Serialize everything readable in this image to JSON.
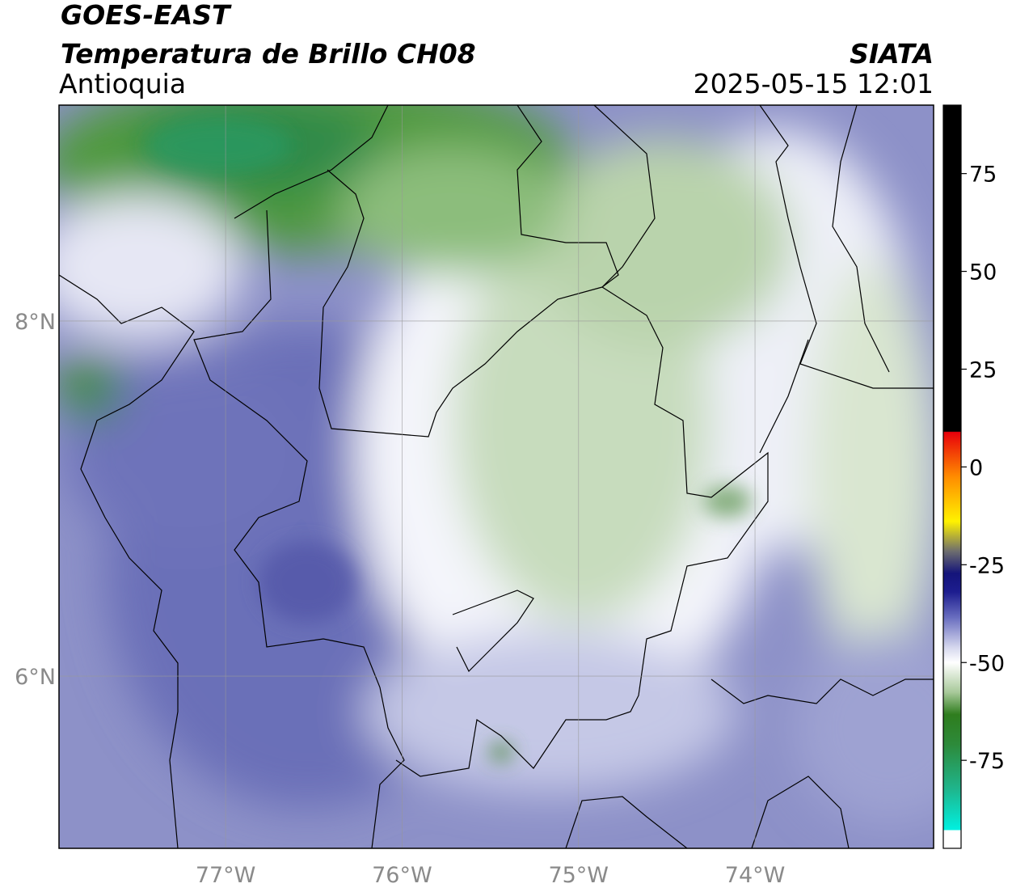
{
  "header": {
    "title": "GOES-EAST",
    "subtitle": "Temperatura de Brillo CH08",
    "region": "Antioquia",
    "source": "SIATA",
    "datetime": "2025-05-15 12:01"
  },
  "map": {
    "xlim": [
      -77.944,
      -72.988
    ],
    "ylim": [
      5.03,
      9.216
    ],
    "xticks": [
      {
        "value": -77,
        "label": "77°W"
      },
      {
        "value": -76,
        "label": "76°W"
      },
      {
        "value": -75,
        "label": "75°W"
      },
      {
        "value": -74,
        "label": "74°W"
      }
    ],
    "yticks": [
      {
        "value": 8,
        "label": "8°N"
      },
      {
        "value": 6,
        "label": "6°N"
      }
    ],
    "grid": true
  },
  "colorbar": {
    "lim": [
      -97.5,
      92.5
    ],
    "ticks": [
      -75,
      -50,
      -25,
      0,
      25,
      50,
      75
    ]
  }
}
